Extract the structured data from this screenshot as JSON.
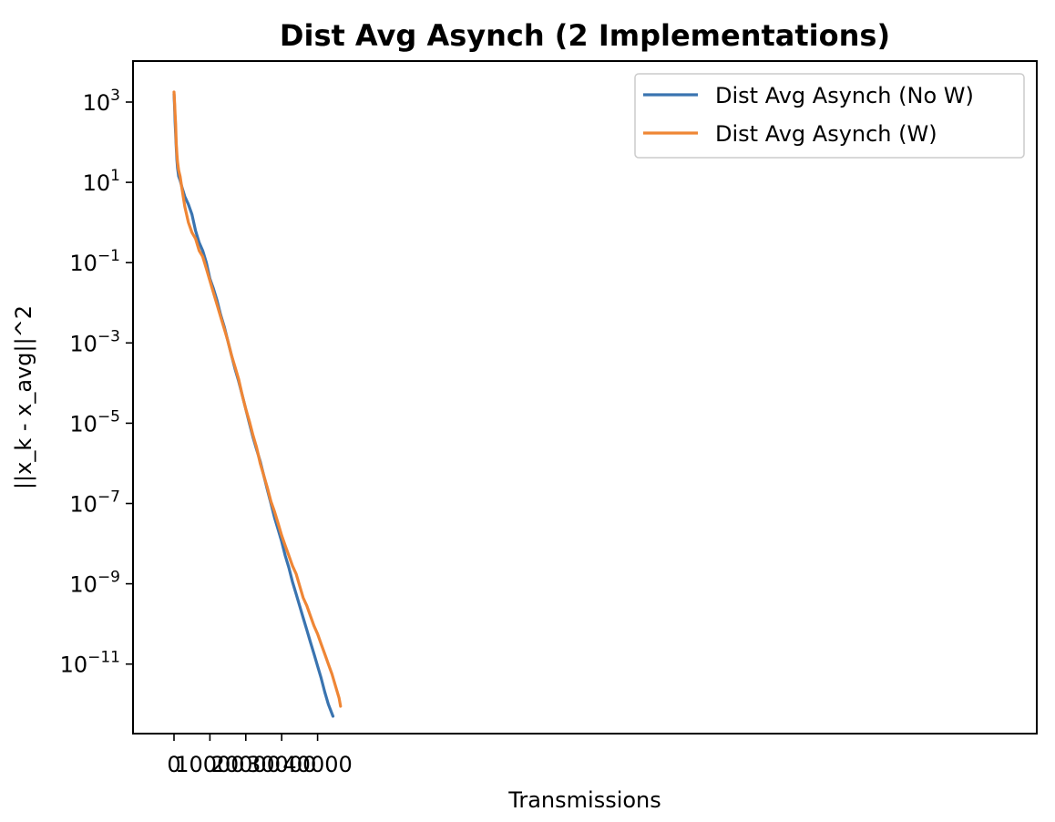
{
  "chart_data": {
    "type": "line",
    "title": "Dist Avg Asynch (2 Implementations)",
    "xlabel": "Transmissions",
    "ylabel": "||x_k - x_avg||^2",
    "y_scale": "log",
    "xlim": [
      -2300,
      49000
    ],
    "ylim_log10": [
      -12.7,
      1000.0
    ],
    "x_ticks": [
      {
        "value": 0,
        "label": "0"
      },
      {
        "value": 10000,
        "label": "10000"
      },
      {
        "value": 20000,
        "label": "20000"
      },
      {
        "value": 30000,
        "label": "30000"
      },
      {
        "value": 40000,
        "label": "40000"
      }
    ],
    "y_ticks": [
      {
        "value": 3,
        "base": "10",
        "exp": "3"
      },
      {
        "value": 1,
        "base": "10",
        "exp": "1"
      },
      {
        "value": -1,
        "base": "10",
        "exp": "−1"
      },
      {
        "value": -3,
        "base": "10",
        "exp": "−3"
      },
      {
        "value": -5,
        "base": "10",
        "exp": "−5"
      },
      {
        "value": -7,
        "base": "10",
        "exp": "−7"
      },
      {
        "value": -9,
        "base": "10",
        "exp": "−9"
      },
      {
        "value": -11,
        "base": "10",
        "exp": "−11"
      }
    ],
    "grid": false,
    "legend_position": "top-right",
    "series": [
      {
        "name": "Dist Avg Asynch (No W)",
        "color": "#3a74b0",
        "x": [
          0,
          150,
          300,
          450,
          600,
          800,
          1000,
          1300,
          1700,
          2200,
          3000,
          4000,
          5000,
          6000,
          7000,
          8000,
          9000,
          10000,
          11000,
          12000,
          13000,
          14000,
          15000,
          16000,
          17000,
          18000,
          19000,
          20000,
          21000,
          22000,
          23000,
          24000,
          25000,
          26000,
          27000,
          28000,
          29000,
          30000,
          31000,
          32000,
          33000,
          34000,
          35000,
          36000,
          37000,
          38000,
          39000,
          40000,
          41000,
          42000,
          43000,
          44300
        ],
        "y": [
          3.2,
          2.9,
          2.5,
          2.2,
          1.9,
          1.55,
          1.35,
          1.15,
          1.05,
          0.88,
          0.65,
          0.45,
          0.2,
          -0.2,
          -0.5,
          -0.7,
          -1.0,
          -1.4,
          -1.65,
          -1.95,
          -2.3,
          -2.6,
          -2.95,
          -3.3,
          -3.65,
          -3.95,
          -4.3,
          -4.65,
          -5.0,
          -5.35,
          -5.65,
          -5.95,
          -6.3,
          -6.65,
          -7.0,
          -7.35,
          -7.65,
          -7.95,
          -8.3,
          -8.6,
          -8.95,
          -9.25,
          -9.55,
          -9.85,
          -10.15,
          -10.45,
          -10.75,
          -11.05,
          -11.35,
          -11.7,
          -12.0,
          -12.3
        ]
      },
      {
        "name": "Dist Avg Asynch (W)",
        "color": "#ef8635",
        "x": [
          0,
          150,
          300,
          450,
          600,
          800,
          1000,
          1300,
          1700,
          2200,
          3000,
          4000,
          5000,
          6000,
          7000,
          8000,
          9000,
          10000,
          11000,
          12000,
          13000,
          14000,
          15000,
          16000,
          17000,
          18000,
          19000,
          20000,
          21000,
          22000,
          23000,
          24000,
          25000,
          26000,
          27000,
          28000,
          29000,
          30000,
          31000,
          32000,
          33000,
          34000,
          35000,
          36000,
          37000,
          38000,
          39000,
          40000,
          41000,
          42000,
          43000,
          44000,
          45000,
          46000,
          46400
        ],
        "y": [
          3.25,
          3.0,
          2.7,
          2.45,
          2.0,
          1.7,
          1.5,
          1.3,
          1.15,
          0.85,
          0.4,
          0.0,
          -0.25,
          -0.4,
          -0.7,
          -0.85,
          -1.15,
          -1.45,
          -1.75,
          -2.05,
          -2.35,
          -2.65,
          -2.95,
          -3.3,
          -3.6,
          -3.9,
          -4.3,
          -4.65,
          -4.95,
          -5.3,
          -5.6,
          -6.0,
          -6.3,
          -6.6,
          -6.95,
          -7.2,
          -7.5,
          -7.8,
          -8.05,
          -8.3,
          -8.55,
          -8.75,
          -9.05,
          -9.35,
          -9.55,
          -9.8,
          -10.05,
          -10.25,
          -10.5,
          -10.75,
          -11.0,
          -11.25,
          -11.55,
          -11.85,
          -12.05
        ]
      }
    ]
  }
}
